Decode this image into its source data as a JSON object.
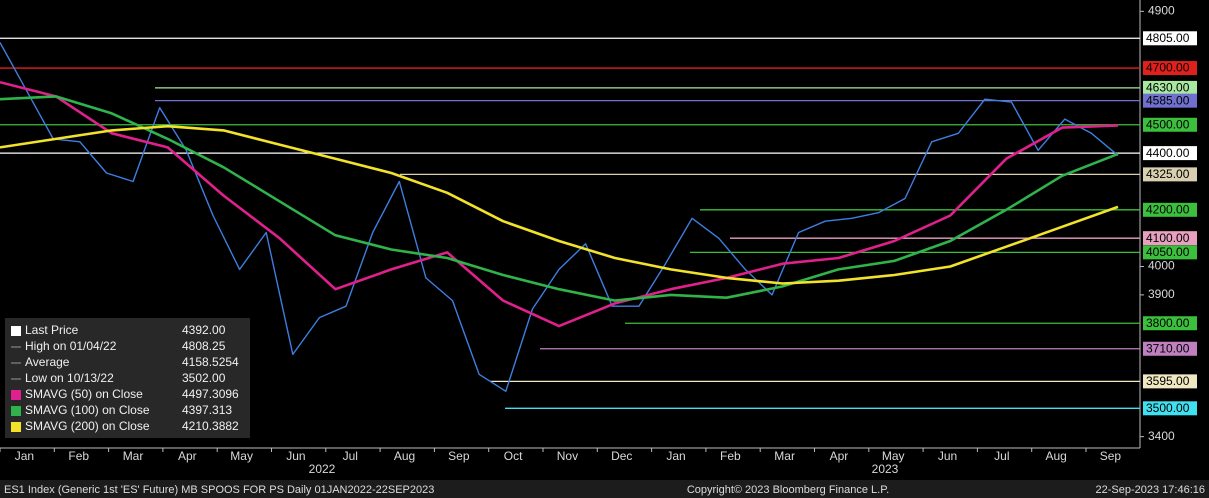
{
  "chart_data": {
    "type": "line",
    "ylim": [
      3360,
      4940
    ],
    "yticks": [
      3400,
      3900,
      4000,
      4900
    ],
    "xlabels": [
      "Jan",
      "Feb",
      "Mar",
      "Apr",
      "May",
      "Jun",
      "Jul",
      "Aug",
      "Sep",
      "Oct",
      "Nov",
      "Dec",
      "Jan",
      "Feb",
      "Mar",
      "Apr",
      "May",
      "Jun",
      "Jul",
      "Aug",
      "Sep"
    ],
    "year_labels": [
      "2022",
      "2023"
    ],
    "series": [
      {
        "name": "Last Price",
        "color": "#3d7fe0",
        "last_label": "4392.00",
        "values": [
          4790,
          4620,
          4450,
          4440,
          4330,
          4300,
          4560,
          4410,
          4180,
          3990,
          4120,
          3690,
          3820,
          3860,
          4120,
          4300,
          3960,
          3880,
          3620,
          3560,
          3850,
          3990,
          4080,
          3860,
          3860,
          4010,
          4170,
          4100,
          3990,
          3900,
          4120,
          4160,
          4170,
          4190,
          4240,
          4440,
          4470,
          4590,
          4580,
          4410,
          4520,
          4470,
          4392
        ]
      },
      {
        "name": "SMAVG (50)  on Close",
        "color": "#e0208c",
        "values": [
          4650,
          4600,
          4470,
          4420,
          4250,
          4100,
          3920,
          3990,
          4050,
          3880,
          3790,
          3870,
          3920,
          3960,
          4010,
          4030,
          4090,
          4180,
          4380,
          4490,
          4497.3096
        ]
      },
      {
        "name": "SMAVG (100)  on Close",
        "color": "#2fb34a",
        "values": [
          4590,
          4600,
          4540,
          4450,
          4350,
          4230,
          4110,
          4060,
          4030,
          3970,
          3920,
          3880,
          3900,
          3890,
          3930,
          3990,
          4020,
          4090,
          4200,
          4320,
          4397.313
        ]
      },
      {
        "name": "SMAVG (200)  on Close",
        "color": "#f2e22a",
        "values": [
          4420,
          4450,
          4480,
          4495,
          4480,
          4430,
          4380,
          4330,
          4260,
          4160,
          4090,
          4030,
          3990,
          3960,
          3940,
          3950,
          3970,
          4000,
          4070,
          4140,
          4210.3882
        ]
      }
    ],
    "stats": [
      {
        "label": "High on 01/04/22",
        "value": 4808.25
      },
      {
        "label": "Average",
        "value": 4158.5254
      },
      {
        "label": "Low on 10/13/22",
        "value": 3502,
        "value_label": "3502.00"
      }
    ],
    "levels": [
      {
        "value": 4805,
        "label": "4805.00",
        "color": "#ffffff"
      },
      {
        "value": 4700,
        "label": "4700.00",
        "color": "#e0201c"
      },
      {
        "value": 4630,
        "label": "4630.00",
        "color": "#a8e8a0"
      },
      {
        "value": 4585,
        "label": "4585.00",
        "color": "#7070d0"
      },
      {
        "value": 4500,
        "label": "4500.00",
        "color": "#3cbf3c"
      },
      {
        "value": 4400,
        "label": "4400.00",
        "color": "#ffffff"
      },
      {
        "value": 4325,
        "label": "4325.00",
        "color": "#d8d0b0"
      },
      {
        "value": 4200,
        "label": "4200.00",
        "color": "#3cbf3c"
      },
      {
        "value": 4100,
        "label": "4100.00",
        "color": "#e8a0c0"
      },
      {
        "value": 4050,
        "label": "4050.00",
        "color": "#3cbf3c"
      },
      {
        "value": 3800,
        "label": "3800.00",
        "color": "#3cbf3c"
      },
      {
        "value": 3710,
        "label": "3710.00",
        "color": "#c080c0"
      },
      {
        "value": 3595,
        "label": "3595.00",
        "color": "#f0e8c0"
      },
      {
        "value": 3500,
        "label": "3500.00",
        "color": "#40e0f0"
      }
    ],
    "footer": {
      "left": "ES1 Index (Generic 1st 'ES' Future) MB SPOOS FOR PS  Daily 01JAN2022-22SEP2023",
      "center": "Copyright© 2023 Bloomberg Finance L.P.",
      "right": "22-Sep-2023 17:46:16"
    }
  }
}
